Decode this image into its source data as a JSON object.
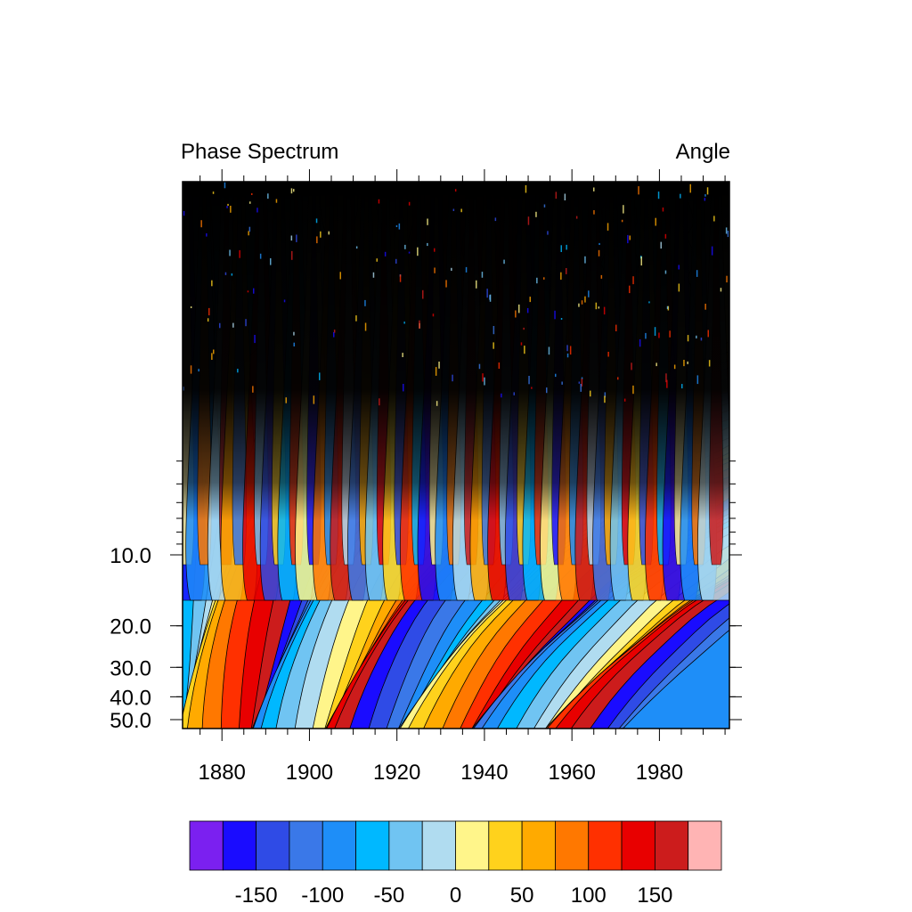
{
  "chart_data": {
    "type": "heatmap",
    "title_left": "Phase Spectrum",
    "title_right": "Angle",
    "x_range": [
      1871,
      1996
    ],
    "x_ticks": [
      "1880",
      "1900",
      "1920",
      "1940",
      "1960",
      "1980"
    ],
    "y_scale": "log",
    "y_ticks": [
      "10.0",
      "20.0",
      "30.0",
      "40.0",
      "50.0"
    ],
    "colorbar": {
      "tick_labels": [
        "-150",
        "-100",
        "-50",
        "0",
        "50",
        "100",
        "150"
      ],
      "levels": [
        -175,
        -150,
        -125,
        -100,
        -75,
        -50,
        -25,
        0,
        25,
        50,
        75,
        100,
        125,
        150,
        175
      ],
      "colors": [
        "#7b20f0",
        "#1a0cff",
        "#2f4be6",
        "#3a78e8",
        "#1e8ef8",
        "#00b8ff",
        "#70c4f2",
        "#b0dcf0",
        "#fff58a",
        "#ffd21c",
        "#ffaa00",
        "#ff7800",
        "#ff3000",
        "#e80000",
        "#cc1c1c",
        "#ffb4b4"
      ]
    },
    "branch_years": [
      1872,
      1876,
      1881,
      1884,
      1889,
      1893,
      1897,
      1901,
      1905,
      1909,
      1913,
      1917,
      1921,
      1925,
      1929,
      1933,
      1937,
      1941,
      1945,
      1949,
      1953,
      1957,
      1961,
      1965,
      1969,
      1973,
      1977,
      1981,
      1985,
      1989,
      1993
    ]
  }
}
